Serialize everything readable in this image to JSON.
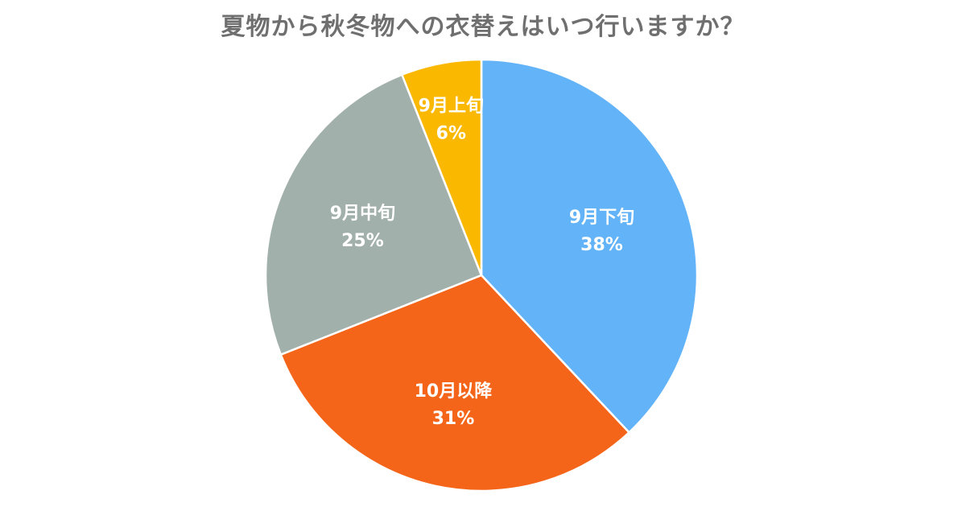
{
  "chart_data": {
    "type": "pie",
    "title": "夏物から秋冬物への衣替えはいつ行いますか？",
    "start_angle": "12 o'clock",
    "direction": "clockwise",
    "legend": "none",
    "slices": [
      {
        "label": "9月下旬",
        "value": 38,
        "value_label": "38%",
        "color": "#63b3f8"
      },
      {
        "label": "10月以降",
        "value": 31,
        "value_label": "31%",
        "color": "#f46519"
      },
      {
        "label": "9月中旬",
        "value": 25,
        "value_label": "25%",
        "color": "#a2b0ac"
      },
      {
        "label": "9月上旬",
        "value": 6,
        "value_label": "6%",
        "color": "#fbb800"
      }
    ]
  }
}
